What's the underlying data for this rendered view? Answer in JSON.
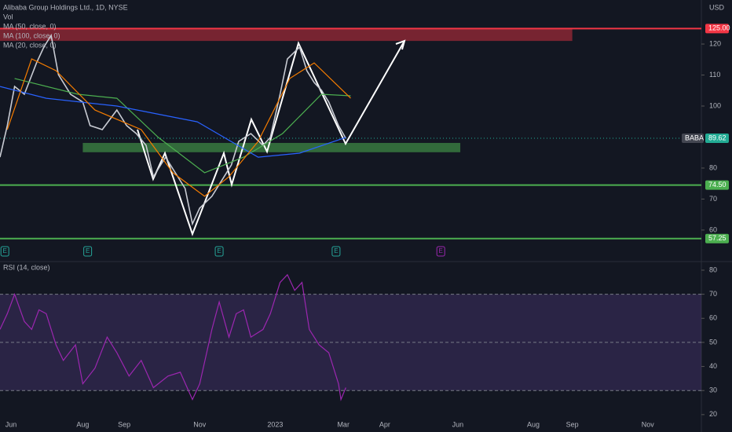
{
  "chart_data": [
    {
      "type": "line",
      "title": "Alibaba Group Holdings Ltd., 1D, NYSE",
      "extra_legend": "Vol",
      "currency": "USD",
      "x": [
        0,
        3,
        6,
        10,
        15,
        18,
        21,
        24,
        29,
        34,
        37,
        42,
        48,
        52,
        56,
        60,
        63,
        68,
        73,
        76,
        79,
        82,
        87,
        90,
        95,
        98,
        103,
        108,
        111,
        115,
        118,
        123,
        126,
        129,
        132,
        135,
        139,
        142
      ],
      "series": [
        {
          "color": "#c8cbd3",
          "values": [
            83.5,
            93.7,
            106.3,
            103.8,
            113.9,
            119.0,
            122.8,
            110.1,
            103.8,
            101.3,
            93.7,
            92.4,
            98.7,
            93.7,
            91.1,
            87.3,
            77.2,
            83.5,
            77.2,
            73.4,
            62.0,
            67.1,
            70.9,
            74.7,
            81.0,
            88.6,
            91.1,
            87.3,
            89.9,
            103.8,
            115.2,
            119.0,
            111.4,
            107.6,
            105.1,
            101.3,
            93.7,
            89.6
          ]
        },
        {
          "name": "MA (50, close, 0)",
          "color": "#4caf50",
          "x": [
            6,
            32,
            48,
            65,
            84,
            100,
            116,
            132,
            144
          ],
          "values": [
            108.9,
            103.8,
            102.5,
            89.9,
            78.5,
            83.5,
            91.1,
            103.8,
            103.3
          ]
        },
        {
          "name": "MA (100, close, 0)",
          "color": "#2962ff",
          "x": [
            0,
            19,
            48,
            81,
            106,
            123,
            142
          ],
          "values": [
            106.3,
            102.5,
            100.0,
            94.9,
            83.5,
            84.8,
            89.9
          ]
        },
        {
          "name": "MA (20, close, 0)",
          "color": "#f57c00",
          "x": [
            3,
            13,
            23,
            39,
            58,
            71,
            84,
            94,
            106,
            119,
            129,
            139,
            144
          ],
          "values": [
            92.4,
            115.2,
            111.4,
            98.7,
            92.4,
            78.5,
            70.9,
            77.2,
            88.6,
            108.9,
            113.9,
            106.3,
            102.5
          ]
        }
      ],
      "levels": [
        {
          "value": 125,
          "label": "125.00",
          "color": "#f23645",
          "zone": [
            121,
            0,
            235
          ]
        },
        {
          "value": 89.62,
          "label": "89.62",
          "tag": "BABA",
          "color": "#22ab94"
        },
        {
          "value": 74.5,
          "label": "74.50",
          "color": "#4caf50",
          "line": true
        },
        {
          "value": 57.25,
          "label": "57.25",
          "color": "#4caf50",
          "line": true
        }
      ],
      "zones": [
        {
          "lo": 85.1,
          "hi": 88.1,
          "x": [
            34,
            189
          ],
          "color": "#4caf50"
        }
      ],
      "earnings": [
        {
          "x": 2,
          "label": "E"
        },
        {
          "x": 36,
          "label": "E"
        },
        {
          "x": 90,
          "label": "E"
        },
        {
          "x": 138,
          "label": "E"
        },
        {
          "x": 181,
          "label": "E",
          "future": true
        }
      ],
      "xlim": [
        0,
        288
      ],
      "ylim": [
        50.6,
        134.2
      ],
      "yticks": [
        60,
        70,
        80,
        100,
        110,
        120
      ],
      "xticks": [
        {
          "value": 4.5,
          "label": "Jun"
        },
        {
          "value": 34,
          "label": "Aug"
        },
        {
          "value": 51,
          "label": "Sep"
        },
        {
          "value": 82,
          "label": "Nov"
        },
        {
          "value": 113,
          "label": "2023"
        },
        {
          "value": 141,
          "label": "Mar"
        },
        {
          "value": 158,
          "label": "Apr"
        },
        {
          "value": 188,
          "label": "Jun"
        },
        {
          "value": 219,
          "label": "Aug"
        },
        {
          "value": 235,
          "label": "Sep"
        },
        {
          "value": 266,
          "label": "Nov"
        }
      ]
    },
    {
      "type": "line",
      "title": "RSI (14, close)",
      "x": [
        0,
        3,
        6,
        10,
        13,
        16,
        19,
        23,
        26,
        31,
        34,
        39,
        44,
        48,
        53,
        58,
        63,
        69,
        74,
        79,
        82,
        87,
        90,
        94,
        97,
        100,
        103,
        108,
        111,
        115,
        118,
        121,
        124,
        127,
        131,
        135,
        139,
        140,
        142
      ],
      "series": [
        {
          "color": "#9c27b0",
          "values": [
            55.4,
            61.9,
            70.0,
            58.7,
            55.4,
            63.5,
            61.9,
            49.0,
            42.5,
            49.0,
            32.8,
            39.3,
            52.2,
            45.7,
            36.0,
            42.5,
            31.2,
            36.0,
            37.6,
            26.3,
            32.8,
            55.4,
            66.8,
            52.2,
            61.9,
            63.5,
            52.2,
            55.4,
            61.9,
            74.9,
            78.1,
            71.6,
            74.9,
            55.4,
            49.0,
            45.7,
            32.8,
            26.3,
            31.2
          ]
        }
      ],
      "band": [
        30,
        70
      ],
      "dashed": [
        30,
        50,
        70
      ],
      "xlim": [
        0,
        288
      ],
      "ylim": [
        18,
        82.6
      ],
      "yticks": [
        20,
        30,
        40,
        50,
        60,
        70,
        80
      ]
    }
  ]
}
